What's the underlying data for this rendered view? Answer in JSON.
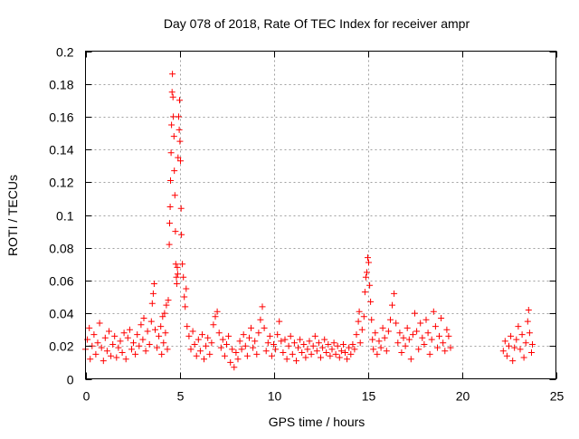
{
  "chart_data": {
    "type": "scatter",
    "title": "Day 078 of 2018, Rate Of TEC Index for receiver ampr",
    "xlabel": "GPS time / hours",
    "ylabel": "ROTI / TECUs",
    "xlim": [
      0,
      25
    ],
    "ylim": [
      0,
      0.2
    ],
    "xticks": [
      0,
      5,
      10,
      15,
      20,
      25
    ],
    "yticks": [
      0,
      0.02,
      0.04,
      0.06,
      0.08,
      0.1,
      0.12,
      0.14,
      0.16,
      0.18,
      0.2
    ],
    "xtick_labels": [
      "0",
      "5",
      "10",
      "15",
      "20",
      "25"
    ],
    "ytick_labels": [
      "0",
      "0.02",
      "0.04",
      "0.06",
      "0.08",
      "0.1",
      "0.12",
      "0.14",
      "0.16",
      "0.18",
      "0.2"
    ],
    "grid": true,
    "marker": "+",
    "series": [
      {
        "name": "ROTI",
        "color": "#ff0000",
        "points": [
          [
            0.0,
            0.018
          ],
          [
            0.1,
            0.024
          ],
          [
            0.2,
            0.031
          ],
          [
            0.25,
            0.012
          ],
          [
            0.35,
            0.02
          ],
          [
            0.45,
            0.027
          ],
          [
            0.55,
            0.015
          ],
          [
            0.65,
            0.022
          ],
          [
            0.75,
            0.034
          ],
          [
            0.85,
            0.019
          ],
          [
            0.95,
            0.011
          ],
          [
            1.05,
            0.025
          ],
          [
            1.15,
            0.017
          ],
          [
            1.25,
            0.029
          ],
          [
            1.35,
            0.014
          ],
          [
            1.45,
            0.021
          ],
          [
            1.55,
            0.026
          ],
          [
            1.65,
            0.013
          ],
          [
            1.75,
            0.019
          ],
          [
            1.85,
            0.023
          ],
          [
            1.95,
            0.016
          ],
          [
            2.05,
            0.028
          ],
          [
            2.15,
            0.012
          ],
          [
            2.25,
            0.025
          ],
          [
            2.35,
            0.03
          ],
          [
            2.45,
            0.018
          ],
          [
            2.55,
            0.022
          ],
          [
            2.65,
            0.015
          ],
          [
            2.75,
            0.027
          ],
          [
            2.85,
            0.02
          ],
          [
            2.95,
            0.033
          ],
          [
            3.05,
            0.024
          ],
          [
            3.1,
            0.037
          ],
          [
            3.2,
            0.017
          ],
          [
            3.3,
            0.029
          ],
          [
            3.4,
            0.021
          ],
          [
            3.5,
            0.035
          ],
          [
            3.55,
            0.046
          ],
          [
            3.6,
            0.052
          ],
          [
            3.65,
            0.058
          ],
          [
            3.7,
            0.03
          ],
          [
            3.8,
            0.019
          ],
          [
            3.9,
            0.026
          ],
          [
            4.0,
            0.032
          ],
          [
            4.05,
            0.015
          ],
          [
            4.1,
            0.038
          ],
          [
            4.15,
            0.022
          ],
          [
            4.2,
            0.04
          ],
          [
            4.25,
            0.028
          ],
          [
            4.3,
            0.045
          ],
          [
            4.35,
            0.018
          ],
          [
            4.4,
            0.048
          ],
          [
            4.45,
            0.082
          ],
          [
            4.47,
            0.095
          ],
          [
            4.5,
            0.105
          ],
          [
            4.52,
            0.121
          ],
          [
            4.55,
            0.138
          ],
          [
            4.57,
            0.155
          ],
          [
            4.6,
            0.175
          ],
          [
            4.62,
            0.186
          ],
          [
            4.65,
            0.172
          ],
          [
            4.67,
            0.16
          ],
          [
            4.7,
            0.148
          ],
          [
            4.72,
            0.127
          ],
          [
            4.75,
            0.112
          ],
          [
            4.78,
            0.09
          ],
          [
            4.8,
            0.07
          ],
          [
            4.83,
            0.062
          ],
          [
            4.85,
            0.058
          ],
          [
            4.88,
            0.068
          ],
          [
            4.9,
            0.064
          ],
          [
            4.92,
            0.135
          ],
          [
            4.95,
            0.16
          ],
          [
            4.98,
            0.152
          ],
          [
            5.0,
            0.17
          ],
          [
            5.02,
            0.145
          ],
          [
            5.05,
            0.133
          ],
          [
            5.08,
            0.104
          ],
          [
            5.1,
            0.088
          ],
          [
            5.15,
            0.07
          ],
          [
            5.2,
            0.062
          ],
          [
            5.25,
            0.05
          ],
          [
            5.3,
            0.044
          ],
          [
            5.35,
            0.055
          ],
          [
            5.4,
            0.032
          ],
          [
            5.5,
            0.026
          ],
          [
            5.6,
            0.018
          ],
          [
            5.7,
            0.029
          ],
          [
            5.8,
            0.021
          ],
          [
            5.9,
            0.014
          ],
          [
            6.0,
            0.024
          ],
          [
            6.1,
            0.017
          ],
          [
            6.2,
            0.027
          ],
          [
            6.3,
            0.012
          ],
          [
            6.4,
            0.02
          ],
          [
            6.5,
            0.025
          ],
          [
            6.6,
            0.015
          ],
          [
            6.7,
            0.022
          ],
          [
            6.8,
            0.033
          ],
          [
            6.9,
            0.038
          ],
          [
            7.0,
            0.041
          ],
          [
            7.1,
            0.028
          ],
          [
            7.2,
            0.019
          ],
          [
            7.3,
            0.024
          ],
          [
            7.4,
            0.014
          ],
          [
            7.5,
            0.021
          ],
          [
            7.6,
            0.026
          ],
          [
            7.7,
            0.01
          ],
          [
            7.8,
            0.018
          ],
          [
            7.9,
            0.007
          ],
          [
            8.0,
            0.016
          ],
          [
            8.1,
            0.012
          ],
          [
            8.2,
            0.023
          ],
          [
            8.3,
            0.018
          ],
          [
            8.4,
            0.027
          ],
          [
            8.5,
            0.02
          ],
          [
            8.6,
            0.014
          ],
          [
            8.7,
            0.025
          ],
          [
            8.8,
            0.031
          ],
          [
            8.9,
            0.019
          ],
          [
            9.0,
            0.023
          ],
          [
            9.1,
            0.015
          ],
          [
            9.2,
            0.028
          ],
          [
            9.3,
            0.036
          ],
          [
            9.4,
            0.044
          ],
          [
            9.5,
            0.031
          ],
          [
            9.6,
            0.017
          ],
          [
            9.7,
            0.022
          ],
          [
            9.8,
            0.026
          ],
          [
            9.9,
            0.014
          ],
          [
            10.0,
            0.021
          ],
          [
            10.1,
            0.018
          ],
          [
            10.2,
            0.027
          ],
          [
            10.3,
            0.035
          ],
          [
            10.4,
            0.023
          ],
          [
            10.5,
            0.016
          ],
          [
            10.6,
            0.024
          ],
          [
            10.7,
            0.012
          ],
          [
            10.8,
            0.02
          ],
          [
            10.9,
            0.026
          ],
          [
            11.0,
            0.015
          ],
          [
            11.1,
            0.022
          ],
          [
            11.2,
            0.011
          ],
          [
            11.3,
            0.019
          ],
          [
            11.4,
            0.024
          ],
          [
            11.5,
            0.016
          ],
          [
            11.6,
            0.021
          ],
          [
            11.7,
            0.013
          ],
          [
            11.8,
            0.018
          ],
          [
            11.9,
            0.023
          ],
          [
            12.0,
            0.015
          ],
          [
            12.1,
            0.02
          ],
          [
            12.2,
            0.026
          ],
          [
            12.3,
            0.017
          ],
          [
            12.4,
            0.022
          ],
          [
            12.5,
            0.013
          ],
          [
            12.6,
            0.019
          ],
          [
            12.7,
            0.024
          ],
          [
            12.8,
            0.016
          ],
          [
            12.9,
            0.021
          ],
          [
            13.0,
            0.014
          ],
          [
            13.1,
            0.018
          ],
          [
            13.2,
            0.022
          ],
          [
            13.3,
            0.015
          ],
          [
            13.4,
            0.02
          ],
          [
            13.5,
            0.013
          ],
          [
            13.6,
            0.017
          ],
          [
            13.7,
            0.021
          ],
          [
            13.8,
            0.016
          ],
          [
            13.9,
            0.012
          ],
          [
            14.0,
            0.019
          ],
          [
            14.1,
            0.015
          ],
          [
            14.2,
            0.021
          ],
          [
            14.3,
            0.018
          ],
          [
            14.4,
            0.027
          ],
          [
            14.5,
            0.035
          ],
          [
            14.55,
            0.041
          ],
          [
            14.6,
            0.022
          ],
          [
            14.7,
            0.03
          ],
          [
            14.8,
            0.038
          ],
          [
            14.85,
            0.053
          ],
          [
            14.9,
            0.062
          ],
          [
            14.95,
            0.065
          ],
          [
            15.0,
            0.074
          ],
          [
            15.05,
            0.071
          ],
          [
            15.1,
            0.057
          ],
          [
            15.15,
            0.047
          ],
          [
            15.2,
            0.036
          ],
          [
            15.25,
            0.024
          ],
          [
            15.3,
            0.018
          ],
          [
            15.4,
            0.028
          ],
          [
            15.5,
            0.015
          ],
          [
            15.6,
            0.023
          ],
          [
            15.7,
            0.019
          ],
          [
            15.8,
            0.031
          ],
          [
            15.9,
            0.025
          ],
          [
            16.0,
            0.017
          ],
          [
            16.1,
            0.029
          ],
          [
            16.2,
            0.036
          ],
          [
            16.3,
            0.045
          ],
          [
            16.4,
            0.052
          ],
          [
            16.5,
            0.034
          ],
          [
            16.6,
            0.022
          ],
          [
            16.7,
            0.028
          ],
          [
            16.8,
            0.016
          ],
          [
            16.9,
            0.025
          ],
          [
            17.0,
            0.02
          ],
          [
            17.1,
            0.031
          ],
          [
            17.2,
            0.024
          ],
          [
            17.3,
            0.012
          ],
          [
            17.4,
            0.027
          ],
          [
            17.5,
            0.04
          ],
          [
            17.6,
            0.029
          ],
          [
            17.7,
            0.018
          ],
          [
            17.8,
            0.034
          ],
          [
            17.9,
            0.025
          ],
          [
            18.0,
            0.021
          ],
          [
            18.1,
            0.036
          ],
          [
            18.2,
            0.028
          ],
          [
            18.3,
            0.015
          ],
          [
            18.4,
            0.024
          ],
          [
            18.5,
            0.041
          ],
          [
            18.6,
            0.032
          ],
          [
            18.7,
            0.019
          ],
          [
            18.8,
            0.026
          ],
          [
            18.9,
            0.037
          ],
          [
            19.0,
            0.022
          ],
          [
            19.1,
            0.017
          ],
          [
            19.2,
            0.03
          ],
          [
            19.3,
            0.026
          ],
          [
            19.4,
            0.019
          ],
          [
            22.2,
            0.017
          ],
          [
            22.3,
            0.023
          ],
          [
            22.4,
            0.014
          ],
          [
            22.5,
            0.02
          ],
          [
            22.6,
            0.026
          ],
          [
            22.7,
            0.011
          ],
          [
            22.8,
            0.019
          ],
          [
            22.9,
            0.024
          ],
          [
            23.0,
            0.032
          ],
          [
            23.1,
            0.018
          ],
          [
            23.2,
            0.027
          ],
          [
            23.3,
            0.013
          ],
          [
            23.4,
            0.022
          ],
          [
            23.5,
            0.035
          ],
          [
            23.55,
            0.042
          ],
          [
            23.6,
            0.028
          ],
          [
            23.7,
            0.016
          ],
          [
            23.75,
            0.021
          ]
        ]
      }
    ]
  }
}
